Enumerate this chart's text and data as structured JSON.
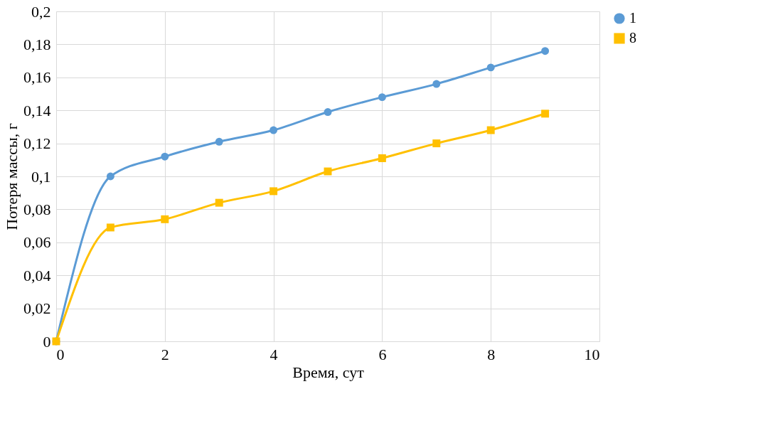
{
  "chart_data": {
    "type": "line",
    "xlabel": "Время, сут",
    "ylabel": "Потеря массы, г",
    "x": [
      0,
      1,
      2,
      3,
      4,
      5,
      6,
      7,
      8,
      9
    ],
    "series": [
      {
        "name": "1",
        "color": "#5b9bd5",
        "marker": "circle",
        "values": [
          0,
          0.1,
          0.112,
          0.121,
          0.128,
          0.139,
          0.148,
          0.156,
          0.166,
          0.176
        ]
      },
      {
        "name": "8",
        "color": "#ffc000",
        "marker": "square",
        "values": [
          0,
          0.069,
          0.074,
          0.084,
          0.091,
          0.103,
          0.111,
          0.12,
          0.128,
          0.138
        ]
      }
    ],
    "xlim": [
      0,
      10
    ],
    "xticks": [
      0,
      2,
      4,
      6,
      8,
      10
    ],
    "ylim": [
      0,
      0.2
    ],
    "yticks": [
      0,
      {
        "value": 0.02,
        "label": "0,02"
      },
      {
        "value": 0.04,
        "label": "0,04"
      },
      {
        "value": 0.06,
        "label": "0,06"
      },
      {
        "value": 0.08,
        "label": "0,08"
      },
      {
        "value": 0.1,
        "label": "0,1"
      },
      {
        "value": 0.12,
        "label": "0,12"
      },
      {
        "value": 0.14,
        "label": "0,14"
      },
      {
        "value": 0.16,
        "label": "0,16"
      },
      {
        "value": 0.18,
        "label": "0,18"
      },
      {
        "value": 0.2,
        "label": "0,2"
      }
    ],
    "grid": true,
    "legend": "right",
    "line_style": "solid"
  }
}
